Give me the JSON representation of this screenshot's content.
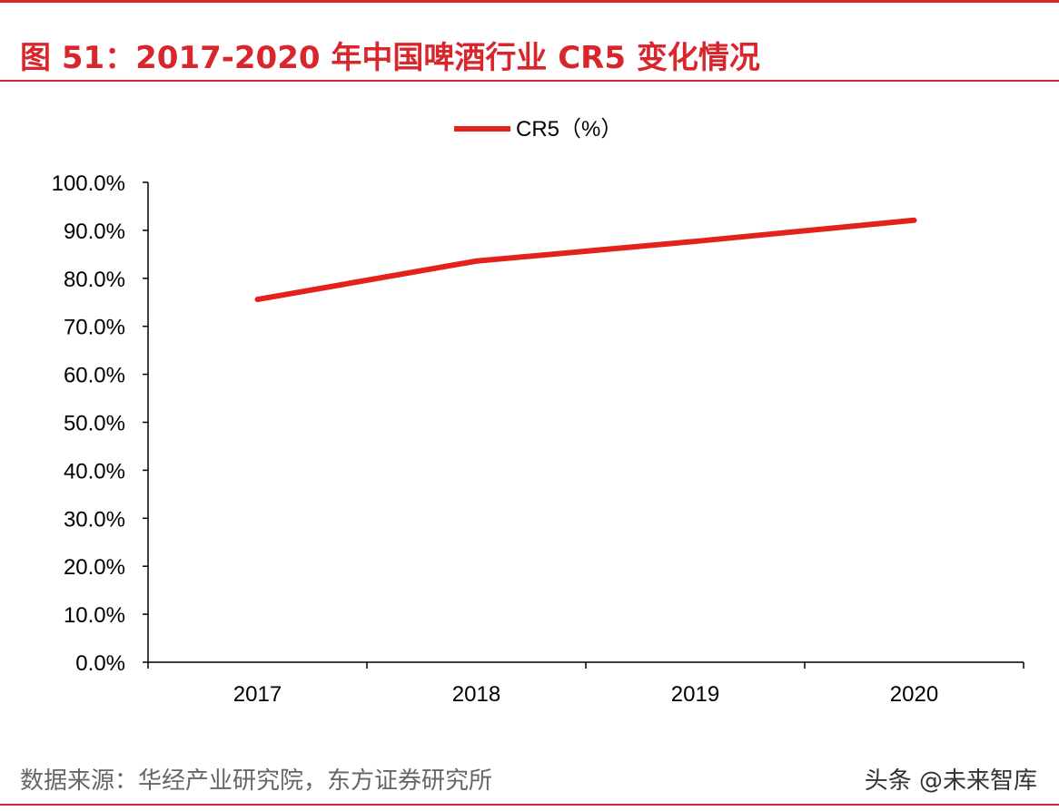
{
  "title": "图 51：2017-2020 年中国啤酒行业 CR5 变化情况",
  "source": "数据来源：华经产业研究院，东方证券研究所",
  "watermark": "头条 @未来智库",
  "chart_data": {
    "type": "line",
    "title": "图 51：2017-2020 年中国啤酒行业 CR5 变化情况",
    "categories": [
      "2017",
      "2018",
      "2019",
      "2020"
    ],
    "series": [
      {
        "name": "CR5（%）",
        "values": [
          75.6,
          83.6,
          87.7,
          92.1
        ],
        "color": "#e3231b"
      }
    ],
    "ylim": [
      0,
      100
    ],
    "yticks": [
      "0.0%",
      "10.0%",
      "20.0%",
      "30.0%",
      "40.0%",
      "50.0%",
      "60.0%",
      "70.0%",
      "80.0%",
      "90.0%",
      "100.0%"
    ],
    "grid": false,
    "legend": "top-center"
  }
}
